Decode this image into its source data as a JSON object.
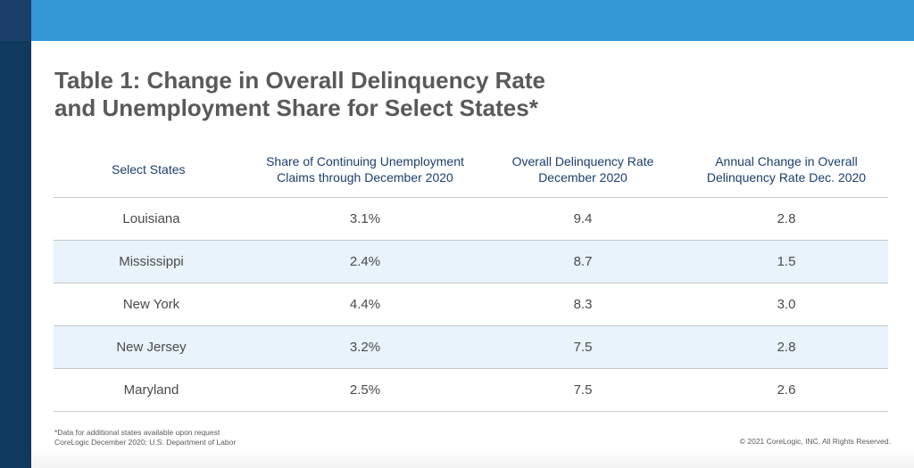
{
  "colors": {
    "top_bar": "#3399d6",
    "left_bar": "#0f3a5e",
    "header_text": "#1c3e6e",
    "row_shade": "#e8f3fb"
  },
  "title": {
    "line1": "Table 1: Change in Overall Delinquency Rate",
    "line2": "and Unemployment Share for Select States*"
  },
  "table": {
    "headers": [
      {
        "line1": "Select States",
        "line2": ""
      },
      {
        "line1": "Share of Continuing Unemployment",
        "line2": "Claims through December 2020"
      },
      {
        "line1": "Overall Delinquency Rate",
        "line2": "December 2020"
      },
      {
        "line1": "Annual Change in Overall",
        "line2": "Delinquency Rate Dec. 2020"
      }
    ],
    "rows": [
      [
        "Louisiana",
        "3.1%",
        "9.4",
        "2.8"
      ],
      [
        "Mississippi",
        "2.4%",
        "8.7",
        "1.5"
      ],
      [
        "New York",
        "4.4%",
        "8.3",
        "3.0"
      ],
      [
        "New Jersey",
        "3.2%",
        "7.5",
        "2.8"
      ],
      [
        "Maryland",
        "2.5%",
        "7.5",
        "2.6"
      ]
    ]
  },
  "footnote": {
    "line1": "*Data for additional states available upon request",
    "line2": "CoreLogic December 2020; U.S. Department of Labor"
  },
  "copyright": "© 2021 CoreLogic, INC. All Rights Reserved."
}
